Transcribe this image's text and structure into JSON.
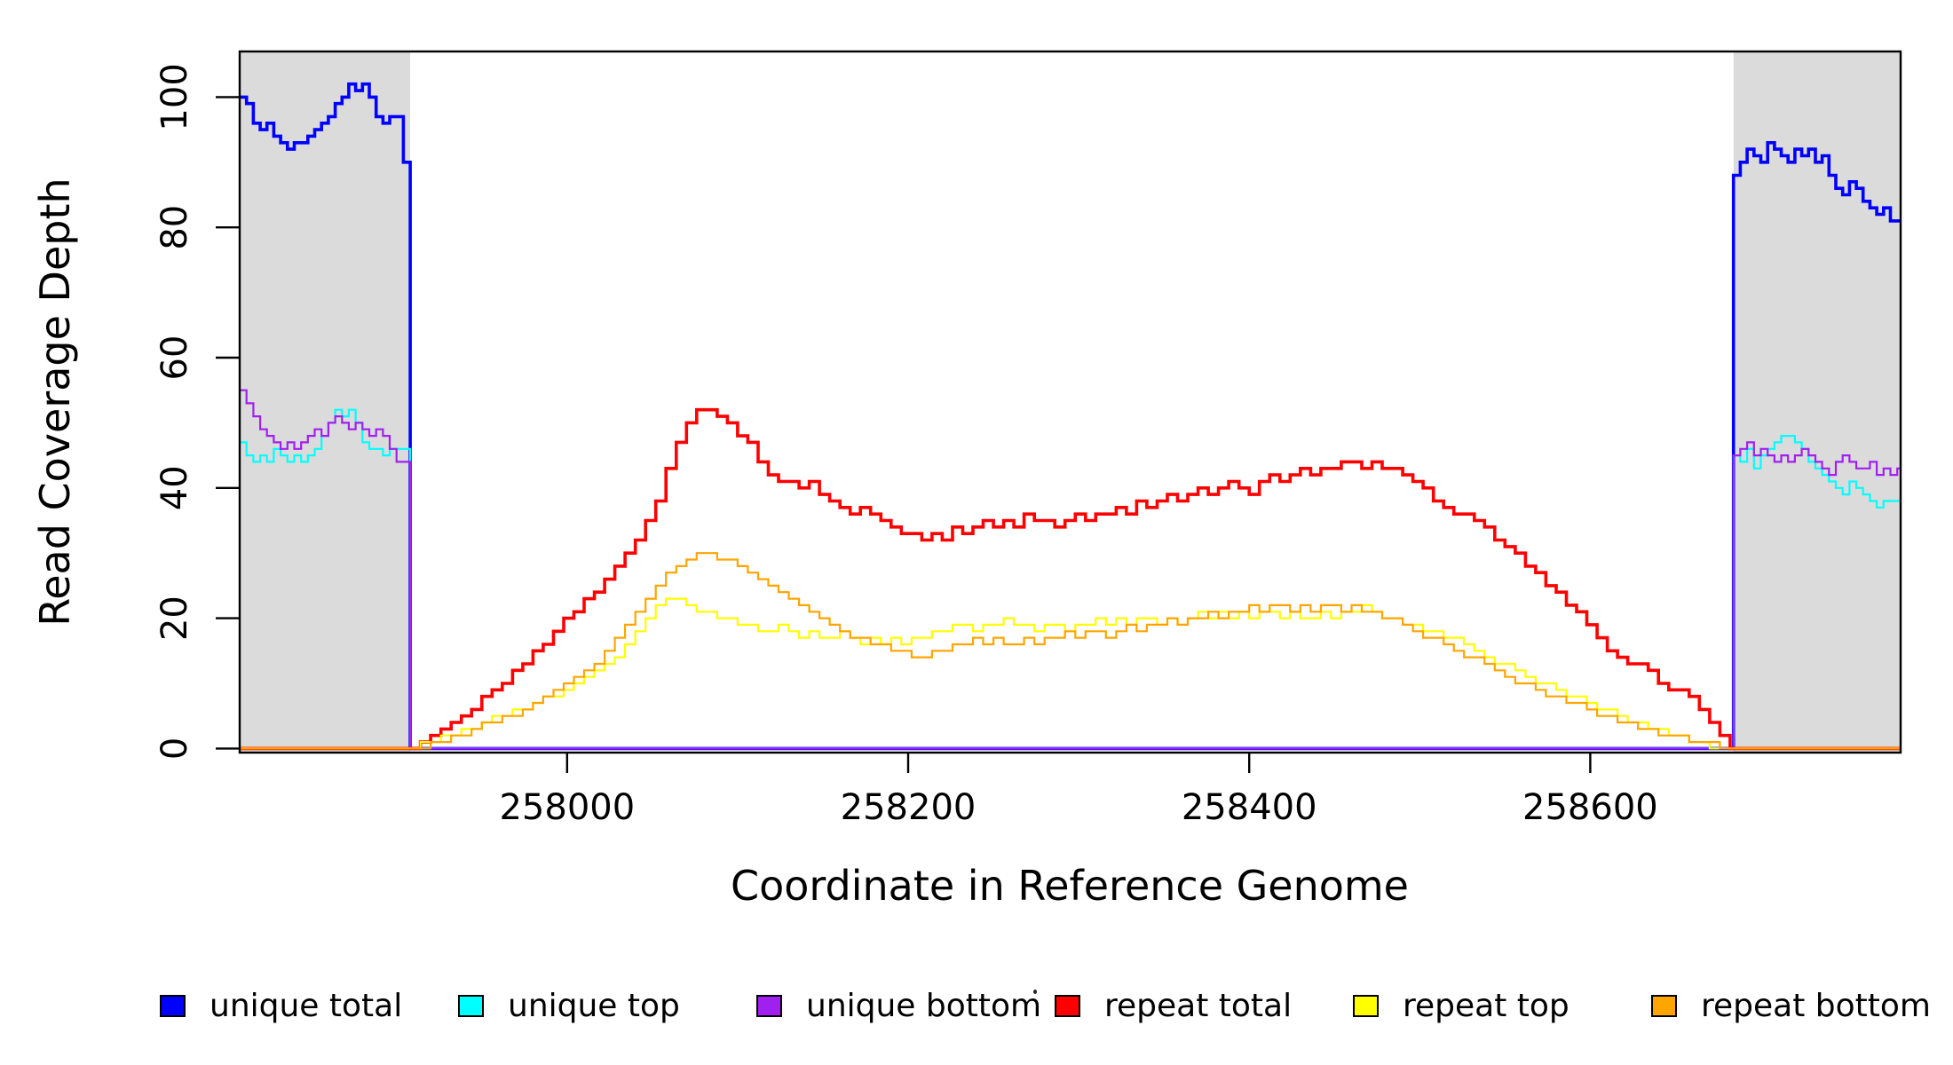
{
  "chart_data": {
    "type": "line",
    "title": "",
    "xlabel": "Coordinate in Reference Genome",
    "ylabel": "Read Coverage Depth",
    "x_domain": [
      257808,
      258782
    ],
    "y_domain": [
      0,
      107
    ],
    "x_ticks": [
      258000,
      258200,
      258400,
      258600
    ],
    "y_ticks": [
      0,
      20,
      40,
      60,
      80,
      100
    ],
    "grid": false,
    "legend_position": "bottom",
    "shade_color": "#DBDBDB",
    "axis_color": "#000000",
    "shaded_regions": [
      {
        "name": "left-unique-flank",
        "x0": 257808,
        "x1": 257908
      },
      {
        "name": "right-unique-flank",
        "x0": 258684,
        "x1": 258782
      }
    ],
    "series": [
      {
        "name": "unique total",
        "color": "#0000FF",
        "style": "step",
        "segments": [
          {
            "x0": 257808,
            "dx": 4,
            "values": [
              100,
              99,
              96,
              95,
              96,
              94,
              93,
              92,
              93,
              93,
              94,
              95,
              96,
              97,
              99,
              100,
              102,
              101,
              102,
              100,
              97,
              96,
              97,
              97,
              90
            ]
          },
          {
            "x0": 258684,
            "dx": 4,
            "values": [
              88,
              90,
              92,
              91,
              90,
              93,
              92,
              91,
              90,
              92,
              91,
              92,
              90,
              91,
              88,
              86,
              85,
              87,
              86,
              84,
              83,
              82,
              83,
              81,
              81
            ]
          }
        ]
      },
      {
        "name": "unique top",
        "color": "#00FFFF",
        "style": "step",
        "segments": [
          {
            "x0": 257808,
            "dx": 4,
            "values": [
              47,
              45,
              44,
              45,
              44,
              46,
              45,
              44,
              45,
              44,
              45,
              46,
              48,
              50,
              52,
              51,
              52,
              50,
              47,
              46,
              46,
              45,
              46,
              46,
              46
            ]
          },
          {
            "x0": 258684,
            "dx": 4,
            "values": [
              45,
              44,
              46,
              43,
              45,
              46,
              47,
              48,
              48,
              47,
              46,
              44,
              43,
              42,
              41,
              40,
              39,
              41,
              40,
              39,
              38,
              37,
              38,
              38,
              38
            ]
          }
        ]
      },
      {
        "name": "unique bottom",
        "color": "#A020F0",
        "style": "step",
        "segments": [
          {
            "x0": 257808,
            "dx": 4,
            "values": [
              55,
              53,
              51,
              49,
              48,
              47,
              46,
              47,
              46,
              47,
              48,
              49,
              48,
              50,
              51,
              50,
              49,
              50,
              49,
              48,
              49,
              48,
              46,
              44,
              44
            ]
          },
          {
            "x0": 258684,
            "dx": 4,
            "values": [
              45,
              46,
              47,
              45,
              46,
              45,
              44,
              45,
              44,
              45,
              46,
              45,
              44,
              43,
              42,
              44,
              45,
              44,
              43,
              43,
              44,
              42,
              43,
              42,
              43
            ]
          }
        ]
      },
      {
        "name": "repeat total",
        "color": "#FF0000",
        "style": "step",
        "segments": [
          {
            "x0": 257908,
            "dx": 6,
            "values": [
              0,
              1,
              2,
              3,
              4,
              5,
              6,
              8,
              9,
              10,
              12,
              13,
              15,
              16,
              18,
              20,
              21,
              23,
              24,
              26,
              28,
              30,
              32,
              35,
              38,
              43,
              47,
              50,
              52,
              52,
              51,
              50,
              48,
              47,
              44,
              42,
              41,
              41,
              40,
              41,
              39,
              38,
              37,
              36,
              37,
              36,
              35,
              34,
              33,
              33,
              32,
              33,
              32,
              34,
              33,
              34,
              35,
              34,
              35,
              34,
              36,
              35,
              35,
              34,
              35,
              36,
              35,
              36,
              36,
              37,
              36,
              38,
              37,
              38,
              39,
              38,
              39,
              40,
              39,
              40,
              41,
              40,
              39,
              41,
              42,
              41,
              42,
              43,
              42,
              43,
              43,
              44,
              44,
              43,
              44,
              43,
              43,
              42,
              41,
              40,
              38,
              37,
              36,
              36,
              35,
              34,
              32,
              31,
              30,
              28,
              27,
              25,
              24,
              22,
              21,
              19,
              17,
              15,
              14,
              13,
              13,
              12,
              10,
              9,
              9,
              8,
              6,
              4,
              2,
              0
            ]
          }
        ]
      },
      {
        "name": "repeat top",
        "color": "#FFFF00",
        "style": "step",
        "segments": [
          {
            "x0": 257908,
            "dx": 6,
            "values": [
              0,
              1,
              1,
              2,
              2,
              3,
              3,
              4,
              5,
              5,
              6,
              6,
              7,
              8,
              8,
              9,
              10,
              11,
              12,
              13,
              14,
              16,
              18,
              20,
              22,
              23,
              23,
              22,
              21,
              21,
              20,
              20,
              19,
              19,
              18,
              18,
              19,
              18,
              17,
              18,
              17,
              17,
              18,
              17,
              16,
              17,
              16,
              17,
              16,
              17,
              17,
              18,
              18,
              19,
              19,
              18,
              19,
              19,
              20,
              19,
              19,
              18,
              19,
              19,
              18,
              19,
              19,
              20,
              19,
              20,
              19,
              20,
              20,
              19,
              20,
              19,
              20,
              21,
              20,
              21,
              20,
              21,
              20,
              21,
              21,
              20,
              21,
              20,
              20,
              21,
              20,
              21,
              21,
              22,
              21,
              20,
              20,
              19,
              19,
              18,
              18,
              17,
              17,
              16,
              15,
              14,
              13,
              13,
              12,
              11,
              10,
              10,
              9,
              8,
              8,
              7,
              6,
              6,
              5,
              4,
              4,
              3,
              3,
              2,
              2,
              1,
              1,
              0,
              0,
              0
            ]
          }
        ]
      },
      {
        "name": "repeat bottom",
        "color": "#FFA500",
        "style": "step",
        "segments": [
          {
            "x0": 257908,
            "dx": 6,
            "values": [
              0,
              0,
              1,
              1,
              2,
              2,
              3,
              4,
              4,
              5,
              5,
              6,
              7,
              8,
              9,
              10,
              11,
              12,
              13,
              15,
              17,
              19,
              21,
              23,
              25,
              27,
              28,
              29,
              30,
              30,
              29,
              29,
              28,
              27,
              26,
              25,
              24,
              23,
              22,
              21,
              20,
              19,
              18,
              17,
              17,
              16,
              16,
              15,
              15,
              14,
              14,
              15,
              15,
              16,
              16,
              17,
              16,
              17,
              16,
              16,
              17,
              16,
              17,
              17,
              18,
              17,
              18,
              18,
              17,
              18,
              19,
              18,
              19,
              19,
              20,
              19,
              20,
              20,
              21,
              20,
              21,
              21,
              22,
              21,
              22,
              22,
              21,
              22,
              21,
              22,
              22,
              21,
              22,
              21,
              21,
              20,
              20,
              19,
              18,
              17,
              17,
              16,
              15,
              14,
              14,
              13,
              12,
              11,
              10,
              10,
              9,
              8,
              8,
              7,
              7,
              6,
              5,
              5,
              4,
              4,
              3,
              3,
              2,
              2,
              2,
              1,
              1,
              1,
              0,
              0
            ]
          }
        ]
      }
    ],
    "legend": {
      "items": [
        {
          "label": "unique total",
          "color": "#0000FF"
        },
        {
          "label": "unique top",
          "color": "#00FFFF"
        },
        {
          "label": "unique bottom",
          "color": "#A020F0"
        },
        {
          "label": "repeat total",
          "color": "#FF0000"
        },
        {
          "label": "repeat top",
          "color": "#FFFF00"
        },
        {
          "label": "repeat bottom",
          "color": "#FFA500"
        }
      ]
    }
  }
}
